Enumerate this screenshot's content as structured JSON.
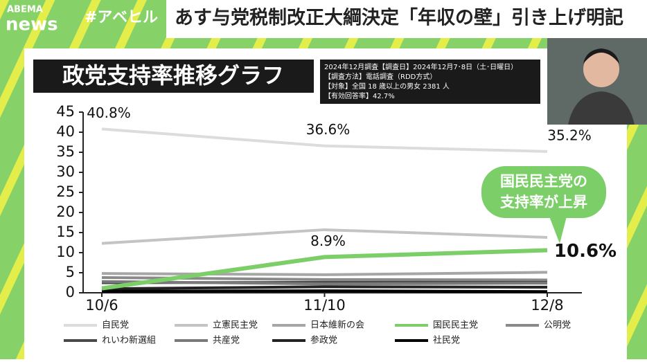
{
  "header": {
    "logo_top": "ABEMA",
    "logo_bottom": "news",
    "hashtag": "#アベヒル",
    "headline": "あす与党税制改正大綱決定「年収の壁」引き上げ明記"
  },
  "chart_data": {
    "type": "line",
    "title": "政党支持率推移グラフ",
    "info": [
      "2024年12月調査【調査日】2024年12月7･8日（土･日曜日）",
      "【調査方法】電話調査（RDD方式）",
      "【対象】全国 18 歳以上の男女 2381 人",
      "【有効回答率】42.7%"
    ],
    "annotation": [
      "国民民主党の",
      "支持率が上昇"
    ],
    "categories": [
      "10/6",
      "11/10",
      "12/8"
    ],
    "ylim": [
      0,
      45
    ],
    "yticks": [
      0,
      5,
      10,
      15,
      20,
      25,
      30,
      35,
      40,
      45
    ],
    "series": [
      {
        "name": "自民党",
        "color": "#dcdcdc",
        "values": [
          40.8,
          36.6,
          35.2
        ],
        "value_labels": [
          "40.8%",
          "36.6%",
          "35.2%"
        ]
      },
      {
        "name": "立憲民主党",
        "color": "#c4c4c4",
        "values": [
          12.3,
          15.7,
          13.8
        ]
      },
      {
        "name": "日本維新の会",
        "color": "#a6a6a6",
        "values": [
          4.8,
          4.5,
          5.1
        ]
      },
      {
        "name": "国民民主党",
        "color": "#7ccf68",
        "values": [
          1.1,
          8.9,
          10.6
        ],
        "value_labels": [
          null,
          "8.9%",
          "10.6%"
        ]
      },
      {
        "name": "公明党",
        "color": "#8a8a8a",
        "values": [
          3.8,
          3.3,
          3.2
        ]
      },
      {
        "name": "れいわ新選組",
        "color": "#4a4a4a",
        "values": [
          2.5,
          2.6,
          2.6
        ]
      },
      {
        "name": "共産党",
        "color": "#7a7a7a",
        "values": [
          2.8,
          2.2,
          2.4
        ]
      },
      {
        "name": "参政党",
        "color": "#222222",
        "values": [
          1.0,
          1.5,
          1.4
        ]
      },
      {
        "name": "社民党",
        "color": "#000000",
        "values": [
          0.4,
          0.5,
          0.3
        ]
      }
    ]
  }
}
